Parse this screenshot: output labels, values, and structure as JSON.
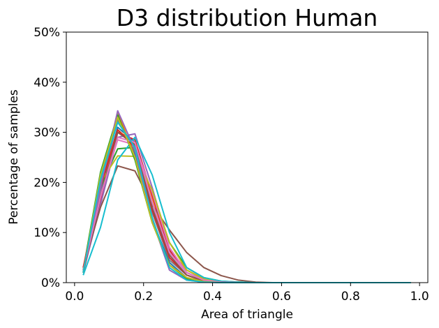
{
  "chart_data": {
    "type": "line",
    "title": "D3 distribution Human",
    "xlabel": "Area of triangle",
    "ylabel": "Percentage of samples",
    "xlim": [
      -0.024,
      1.024
    ],
    "ylim": [
      0,
      50
    ],
    "x_ticks": [
      0.0,
      0.2,
      0.4,
      0.6,
      0.8,
      1.0
    ],
    "x_tick_labels": [
      "0.0",
      "0.2",
      "0.4",
      "0.6",
      "0.8",
      "1.0"
    ],
    "y_ticks": [
      0,
      10,
      20,
      30,
      40,
      50
    ],
    "y_tick_labels": [
      "0%",
      "10%",
      "20%",
      "30%",
      "40%",
      "50%"
    ],
    "grid": false,
    "legend": false,
    "x": [
      0.025,
      0.075,
      0.125,
      0.175,
      0.225,
      0.275,
      0.325,
      0.375,
      0.425,
      0.475,
      0.525,
      0.575,
      0.625,
      0.675,
      0.725,
      0.775,
      0.825,
      0.875,
      0.925,
      0.975
    ],
    "series": [
      {
        "color": "#1f77b4",
        "values": [
          2.0,
          18.0,
          31.0,
          28.0,
          16.0,
          6.0,
          2.0,
          0.6,
          0.2,
          0.1,
          0,
          0,
          0,
          0,
          0,
          0,
          0,
          0,
          0,
          0
        ]
      },
      {
        "color": "#ff7f0e",
        "values": [
          2.5,
          17.0,
          30.5,
          27.5,
          17.0,
          6.5,
          2.5,
          0.8,
          0.2,
          0.1,
          0,
          0,
          0,
          0,
          0,
          0,
          0,
          0,
          0,
          0
        ]
      },
      {
        "color": "#2ca02c",
        "values": [
          2.0,
          19.0,
          26.7,
          27.0,
          18.0,
          8.0,
          3.0,
          1.0,
          0.3,
          0.1,
          0,
          0,
          0,
          0,
          0,
          0,
          0,
          0,
          0,
          0
        ]
      },
      {
        "color": "#d62728",
        "values": [
          2.5,
          16.0,
          30.0,
          28.5,
          17.5,
          6.5,
          2.0,
          0.5,
          0.2,
          0,
          0,
          0,
          0,
          0,
          0,
          0,
          0,
          0,
          0,
          0
        ]
      },
      {
        "color": "#9467bd",
        "values": [
          2.0,
          15.5,
          29.0,
          29.7,
          19.0,
          7.0,
          2.0,
          0.5,
          0.1,
          0,
          0,
          0,
          0,
          0,
          0,
          0,
          0,
          0,
          0,
          0
        ]
      },
      {
        "color": "#8c564b",
        "values": [
          3.0,
          15.0,
          23.3,
          22.3,
          15.5,
          10.5,
          6.0,
          3.0,
          1.4,
          0.5,
          0.1,
          0,
          0,
          0,
          0,
          0,
          0,
          0,
          0,
          0
        ]
      },
      {
        "color": "#e377c2",
        "values": [
          2.0,
          17.5,
          28.5,
          27.5,
          18.0,
          7.0,
          2.0,
          0.5,
          0.1,
          0,
          0,
          0,
          0,
          0,
          0,
          0,
          0,
          0,
          0,
          0
        ]
      },
      {
        "color": "#7f7f7f",
        "values": [
          2.0,
          18.5,
          32.5,
          26.0,
          14.0,
          4.5,
          1.5,
          0.4,
          0.1,
          0,
          0,
          0,
          0,
          0,
          0,
          0,
          0,
          0,
          0,
          0
        ]
      },
      {
        "color": "#bcbd22",
        "values": [
          2.0,
          20.0,
          25.3,
          25.2,
          18.5,
          8.0,
          2.5,
          0.7,
          0.2,
          0,
          0,
          0,
          0,
          0,
          0,
          0,
          0,
          0,
          0,
          0
        ]
      },
      {
        "color": "#17becf",
        "values": [
          1.5,
          11.0,
          24.5,
          29.0,
          21.5,
          10.0,
          3.0,
          1.0,
          0.3,
          0.1,
          0,
          0,
          0,
          0,
          0,
          0,
          0,
          0,
          0,
          0
        ]
      },
      {
        "color": "#1f77b4",
        "values": [
          2.0,
          21.0,
          33.0,
          25.5,
          12.5,
          4.0,
          1.0,
          0.2,
          0,
          0,
          0,
          0,
          0,
          0,
          0,
          0,
          0,
          0,
          0,
          0
        ]
      },
      {
        "color": "#ff7f0e",
        "values": [
          2.0,
          19.5,
          34.2,
          25.0,
          12.0,
          3.5,
          1.0,
          0.2,
          0,
          0,
          0,
          0,
          0,
          0,
          0,
          0,
          0,
          0,
          0,
          0
        ]
      },
      {
        "color": "#2ca02c",
        "values": [
          2.5,
          22.0,
          33.5,
          24.5,
          12.0,
          3.5,
          0.8,
          0.2,
          0,
          0,
          0,
          0,
          0,
          0,
          0,
          0,
          0,
          0,
          0,
          0
        ]
      },
      {
        "color": "#d62728",
        "values": [
          3.0,
          19.0,
          30.5,
          27.0,
          14.5,
          5.0,
          1.5,
          0.3,
          0.1,
          0,
          0,
          0,
          0,
          0,
          0,
          0,
          0,
          0,
          0,
          0
        ]
      },
      {
        "color": "#9467bd",
        "values": [
          2.0,
          19.0,
          34.3,
          26.5,
          12.5,
          2.5,
          0.5,
          0.1,
          0,
          0,
          0,
          0,
          0,
          0,
          0,
          0,
          0,
          0,
          0,
          0
        ]
      },
      {
        "color": "#8c564b",
        "values": [
          2.0,
          17.0,
          30.0,
          27.5,
          15.0,
          5.5,
          1.5,
          0.3,
          0.1,
          0,
          0,
          0,
          0,
          0,
          0,
          0,
          0,
          0,
          0,
          0
        ]
      },
      {
        "color": "#e377c2",
        "values": [
          2.5,
          17.0,
          29.0,
          28.0,
          16.0,
          6.0,
          2.0,
          0.5,
          0.1,
          0,
          0,
          0,
          0,
          0,
          0,
          0,
          0,
          0,
          0,
          0
        ]
      },
      {
        "color": "#bcbd22",
        "values": [
          2.0,
          21.5,
          33.0,
          25.0,
          12.0,
          3.5,
          1.0,
          0.2,
          0,
          0,
          0,
          0,
          0,
          0,
          0,
          0,
          0,
          0,
          0,
          0
        ]
      },
      {
        "color": "#17becf",
        "values": [
          2.0,
          20.5,
          32.0,
          27.0,
          13.0,
          3.0,
          0.5,
          0.1,
          0,
          0,
          0,
          0,
          0,
          0,
          0,
          0,
          0,
          0,
          0,
          0
        ]
      }
    ]
  }
}
